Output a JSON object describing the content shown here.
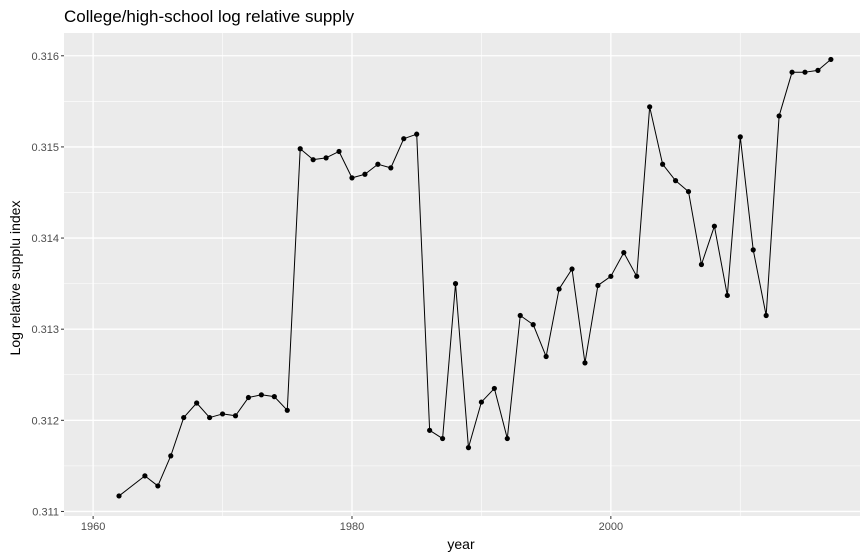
{
  "chart_data": {
    "type": "line",
    "title": "College/high-school log relative supply",
    "xlabel": "year",
    "ylabel": "Log relative supplu index",
    "xlim": [
      1957.75,
      2019.25
    ],
    "ylim": [
      0.31095,
      0.31625
    ],
    "x_ticks": [
      1960,
      1980,
      2000
    ],
    "x_tick_labels": [
      "1960",
      "1980",
      "2000"
    ],
    "x_minor_ticks": [
      1970,
      1990,
      2010
    ],
    "y_ticks": [
      0.311,
      0.312,
      0.313,
      0.314,
      0.315,
      0.316
    ],
    "y_tick_labels": [
      "0.311",
      "0.312",
      "0.313",
      "0.314",
      "0.315",
      "0.316"
    ],
    "y_minor_ticks": [
      0.3115,
      0.3125,
      0.3135,
      0.3145,
      0.3155
    ],
    "grid": true,
    "markers": true,
    "panel_color": "#ebebeb",
    "grid_color": "#ffffff",
    "line_color": "#000000",
    "series": [
      {
        "x": [
          1962,
          1964,
          1965,
          1966,
          1967,
          1968,
          1969,
          1970,
          1971,
          1972,
          1973,
          1974,
          1975,
          1976,
          1977,
          1978,
          1979,
          1980,
          1981,
          1982,
          1983,
          1984,
          1985,
          1986,
          1987,
          1988,
          1989,
          1990,
          1991,
          1992,
          1993,
          1994,
          1995,
          1996,
          1997,
          1998,
          1999,
          2000,
          2001,
          2002,
          2003,
          2004,
          2005,
          2006,
          2007,
          2008,
          2009,
          2010,
          2011,
          2012,
          2013,
          2014,
          2015,
          2016,
          2017
        ],
        "values": [
          0.31117,
          0.31139,
          0.31128,
          0.31161,
          0.31203,
          0.31219,
          0.31203,
          0.31207,
          0.31205,
          0.31225,
          0.31228,
          0.31226,
          0.31211,
          0.31498,
          0.31486,
          0.31488,
          0.31495,
          0.31466,
          0.3147,
          0.31481,
          0.31477,
          0.31509,
          0.31514,
          0.31189,
          0.3118,
          0.3135,
          0.3117,
          0.3122,
          0.31235,
          0.3118,
          0.31315,
          0.31305,
          0.3127,
          0.31344,
          0.31366,
          0.31263,
          0.31348,
          0.31358,
          0.31384,
          0.31358,
          0.31544,
          0.31481,
          0.31463,
          0.31451,
          0.31371,
          0.31413,
          0.31337,
          0.31511,
          0.31387,
          0.31315,
          0.31534,
          0.31582,
          0.31582,
          0.31584,
          0.31596
        ]
      }
    ]
  }
}
